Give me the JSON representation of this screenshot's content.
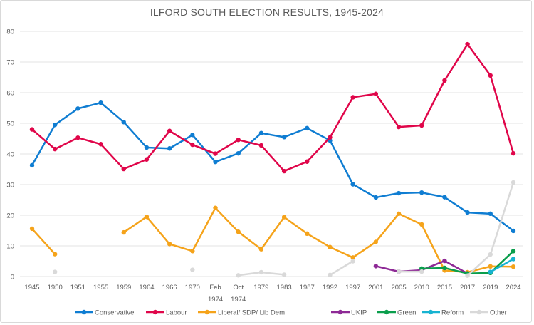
{
  "chart_data": {
    "type": "line",
    "title": "ILFORD SOUTH ELECTION RESULTS, 1945-2024",
    "xlabel": "",
    "ylabel": "",
    "ylim": [
      0,
      80
    ],
    "yticks": [
      0,
      10,
      20,
      30,
      40,
      50,
      60,
      70,
      80
    ],
    "grid": true,
    "legend": "bottom",
    "categories": [
      "1945",
      "1950",
      "1951",
      "1955",
      "1959",
      "1964",
      "1966",
      "1970",
      "Feb 1974",
      "Oct 1974",
      "1979",
      "1983",
      "1987",
      "1992",
      "1997",
      "2001",
      "2005",
      "2010",
      "2015",
      "2017",
      "2019",
      "2024"
    ],
    "series": [
      {
        "name": "Conservative",
        "color": "#0f7dd2",
        "values": [
          36.3,
          49.5,
          54.8,
          56.7,
          50.4,
          42.1,
          41.8,
          46.2,
          37.4,
          40.2,
          46.8,
          45.5,
          48.4,
          44.4,
          30.1,
          25.8,
          27.2,
          27.4,
          25.9,
          20.9,
          20.5,
          14.9
        ]
      },
      {
        "name": "Labour",
        "color": "#e0064a",
        "values": [
          48.0,
          41.6,
          45.3,
          43.2,
          35.1,
          38.2,
          47.5,
          43.0,
          40.1,
          44.6,
          42.8,
          34.4,
          37.5,
          45.4,
          58.5,
          59.6,
          48.8,
          49.3,
          64.0,
          75.8,
          65.6,
          40.2
        ]
      },
      {
        "name": "Liberal/ SDP/ Lib  Dem",
        "color": "#f5a31a",
        "values": [
          15.6,
          7.3,
          null,
          null,
          14.4,
          19.5,
          10.6,
          8.3,
          22.4,
          14.6,
          8.9,
          19.4,
          14.0,
          9.6,
          6.2,
          11.3,
          20.5,
          17.0,
          2.0,
          1.4,
          3.3,
          3.2
        ]
      },
      {
        "name": "UKIP",
        "color": "#8e2a96",
        "values": [
          null,
          null,
          null,
          null,
          null,
          null,
          null,
          null,
          null,
          null,
          null,
          null,
          null,
          null,
          null,
          3.4,
          1.6,
          2.1,
          5.1,
          1.0,
          null,
          null
        ]
      },
      {
        "name": "Green",
        "color": "#0a9e4c",
        "values": [
          null,
          null,
          null,
          null,
          null,
          null,
          null,
          null,
          null,
          null,
          null,
          null,
          null,
          null,
          null,
          null,
          null,
          2.6,
          2.8,
          1.0,
          1.2,
          8.3
        ]
      },
      {
        "name": "Reform",
        "color": "#17b3d1",
        "values": [
          null,
          null,
          null,
          null,
          null,
          null,
          null,
          null,
          null,
          null,
          null,
          null,
          null,
          null,
          null,
          null,
          null,
          null,
          null,
          null,
          1.5,
          5.7
        ]
      },
      {
        "name": "Other",
        "color": "#d9d9d9",
        "values": [
          null,
          1.5,
          null,
          null,
          null,
          null,
          null,
          2.2,
          null,
          0.4,
          1.4,
          0.6,
          null,
          0.5,
          5.0,
          null,
          1.6,
          1.6,
          null,
          0.3,
          7.2,
          30.7
        ]
      }
    ]
  }
}
